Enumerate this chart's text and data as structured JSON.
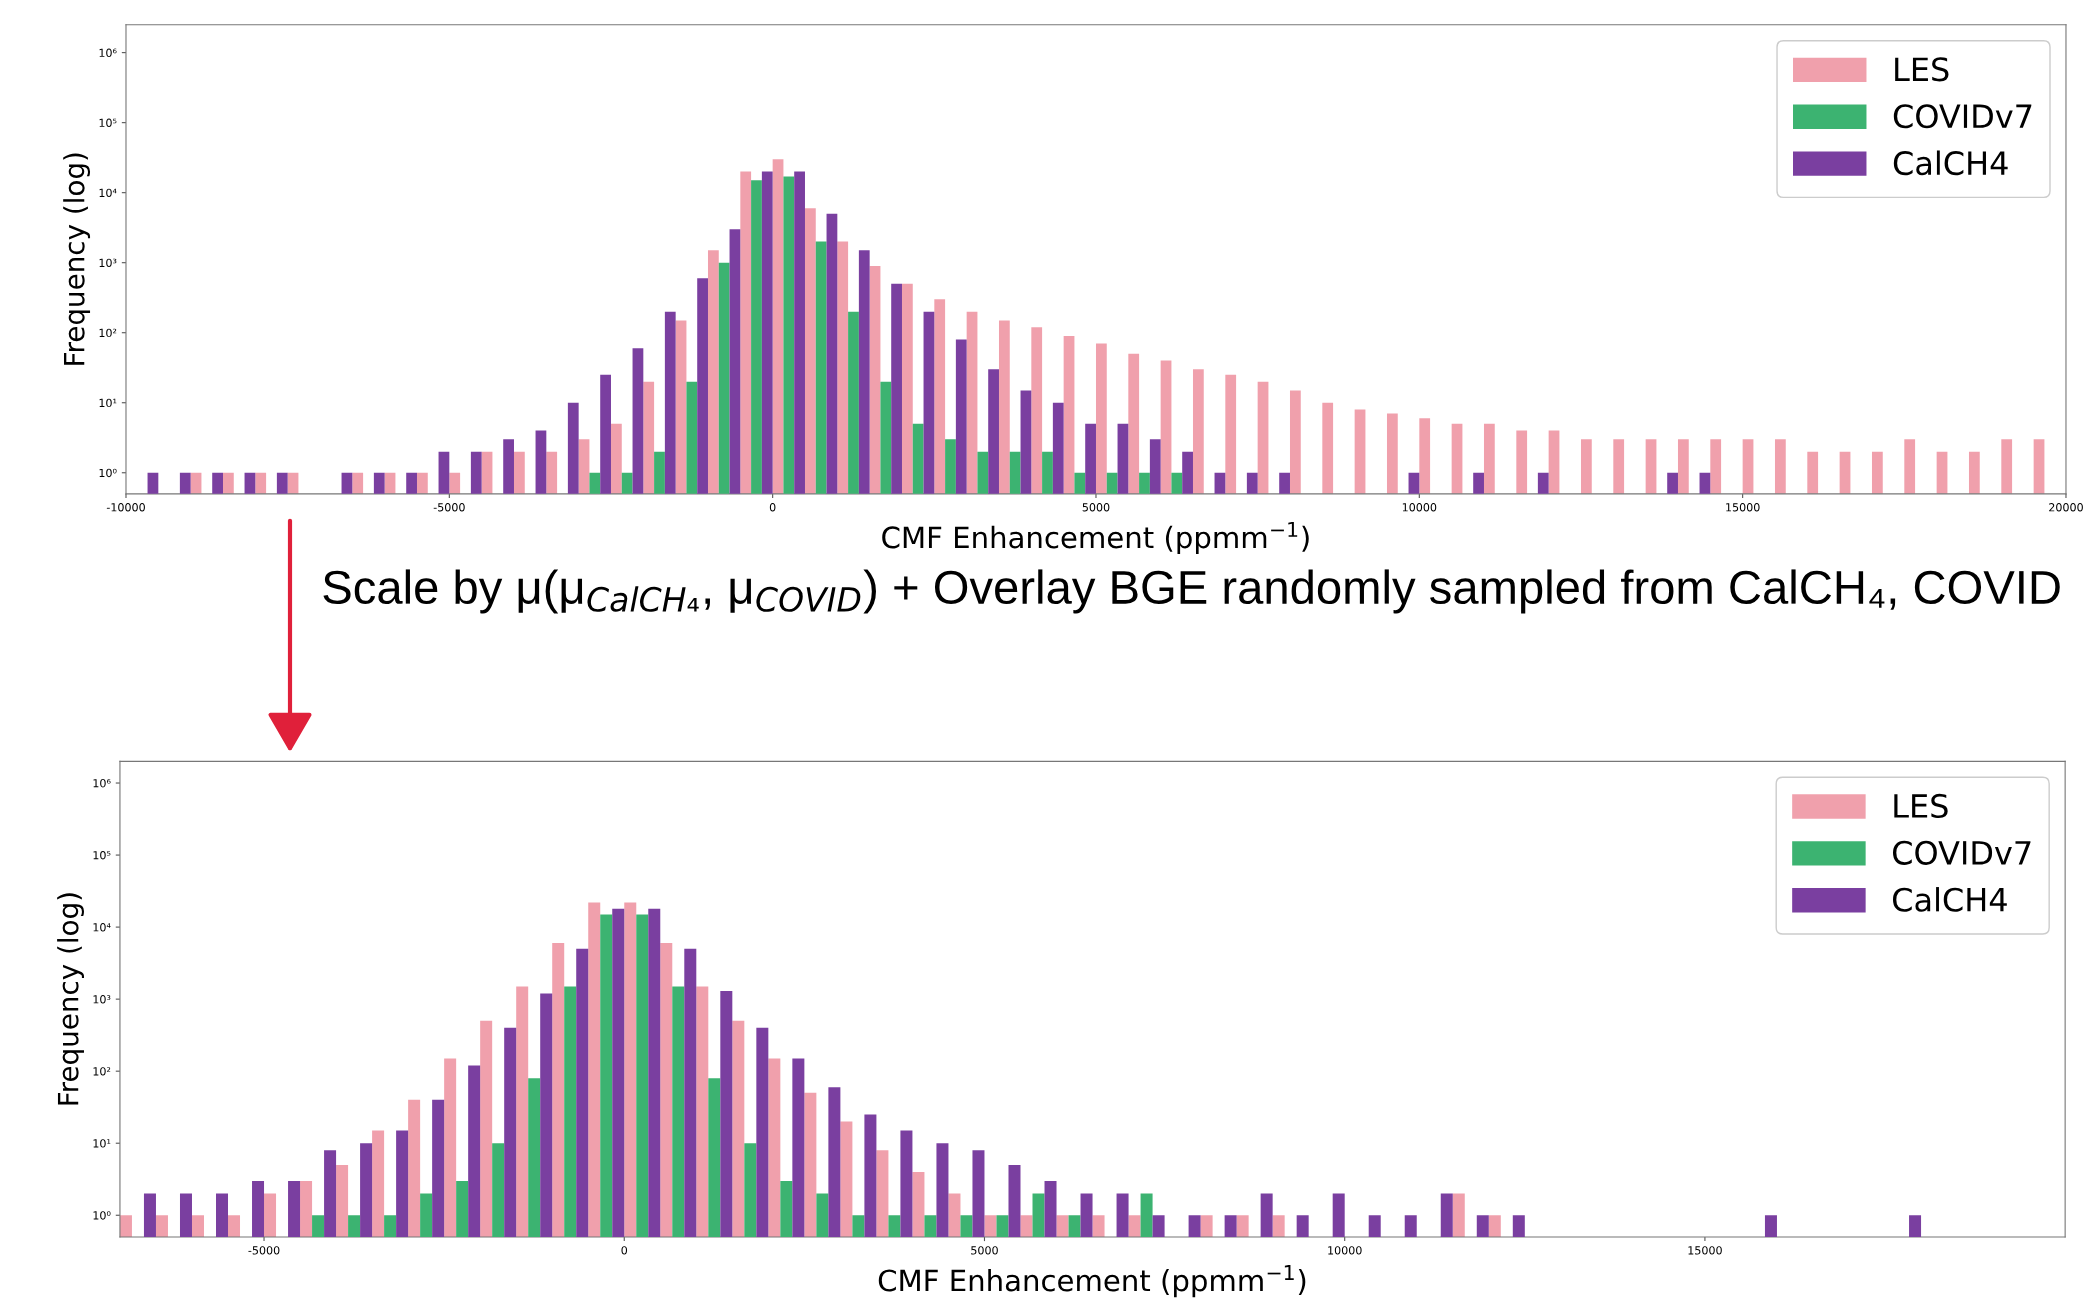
{
  "chart_data": [
    {
      "type": "histogram",
      "xlabel": "CMF Enhancement (ppmm$^{−1}$)",
      "ylabel": "Frequency (log)",
      "log": true,
      "legend": "top right",
      "grid": false,
      "bins": [
        -10000,
        -9500,
        -9000,
        -8500,
        -8000,
        -7500,
        -7000,
        -6500,
        -6000,
        -5500,
        -5000,
        -4500,
        -4000,
        -3500,
        -3000,
        -2500,
        -2000,
        -1500,
        -1000,
        -500,
        0,
        500,
        1000,
        1500,
        2000,
        2500,
        3000,
        3500,
        4000,
        4500,
        5000,
        5500,
        6000,
        6500,
        7000,
        7500,
        8000,
        8500,
        9000,
        9500,
        10000,
        10500,
        11000,
        11500,
        12000,
        12500,
        13000,
        13500,
        14000,
        14500,
        15000,
        15500,
        16000,
        16500,
        17000,
        17500,
        18000,
        18500,
        19000,
        19500,
        20000
      ],
      "xlim": [
        -10000,
        20000
      ],
      "xticks": [
        -10000,
        -5000,
        0,
        5000,
        10000,
        15000,
        20000
      ],
      "ylim": [
        0.5,
        2500000
      ],
      "yticks": [
        {
          "value": 1,
          "label": "10⁰"
        },
        {
          "value": 10,
          "label": "10¹"
        },
        {
          "value": 100,
          "label": "10²"
        },
        {
          "value": 1000,
          "label": "10³"
        },
        {
          "value": 10000,
          "label": "10⁴"
        },
        {
          "value": 100000,
          "label": "10⁵"
        },
        {
          "value": 1000000,
          "label": "10⁶"
        }
      ],
      "series": [
        {
          "name": "LES",
          "color": "#f0a0ac",
          "values": [
            null,
            null,
            1,
            1,
            1,
            1,
            null,
            1,
            1,
            1,
            1,
            2,
            2,
            2,
            3,
            5,
            20,
            150,
            1500,
            20000,
            30000,
            6000,
            2000,
            900,
            500,
            300,
            200,
            150,
            120,
            90,
            70,
            50,
            40,
            30,
            25,
            20,
            15,
            10,
            8,
            7,
            6,
            5,
            5,
            4,
            4,
            3,
            3,
            3,
            3,
            3,
            3,
            3,
            2,
            2,
            2,
            3,
            2,
            2,
            3,
            3
          ]
        },
        {
          "name": "COVIDv7",
          "color": "#3cb371",
          "values": [
            null,
            null,
            null,
            null,
            null,
            null,
            null,
            null,
            null,
            null,
            null,
            null,
            null,
            null,
            1,
            1,
            2,
            20,
            1000,
            15000,
            17000,
            2000,
            200,
            20,
            5,
            3,
            2,
            2,
            2,
            1,
            1,
            1,
            1,
            null,
            null,
            null,
            null,
            null,
            null,
            null,
            null,
            null,
            null,
            null,
            null,
            null,
            null,
            null,
            null,
            null,
            null,
            null,
            null,
            null,
            null,
            null,
            null,
            null,
            null,
            null
          ]
        },
        {
          "name": "CalCH4",
          "color": "#7a3fa0",
          "values": [
            1,
            1,
            1,
            1,
            1,
            null,
            1,
            1,
            1,
            2,
            2,
            3,
            4,
            10,
            25,
            60,
            200,
            600,
            3000,
            20000,
            20000,
            5000,
            1500,
            500,
            200,
            80,
            30,
            15,
            10,
            5,
            5,
            3,
            2,
            1,
            1,
            1,
            null,
            null,
            null,
            1,
            null,
            1,
            null,
            1,
            null,
            null,
            null,
            1,
            1,
            null,
            null,
            null,
            null,
            null,
            null,
            null,
            null,
            null,
            null,
            null
          ]
        }
      ]
    },
    {
      "type": "histogram",
      "xlabel": "CMF Enhancement (ppmm$^{−1}$)",
      "ylabel": "Frequency (log)",
      "log": true,
      "legend": "top right",
      "grid": false,
      "annotations": [
        "Scale by μ(μ$_{CalCH₄}$, μ$_{COVID}$) + Overlay BGE randomly sampled from CalCH₄, COVID"
      ],
      "bins": [
        -7000,
        -6500,
        -6000,
        -5500,
        -5000,
        -4500,
        -4000,
        -3500,
        -3000,
        -2500,
        -2000,
        -1500,
        -1000,
        -500,
        0,
        500,
        1000,
        1500,
        2000,
        2500,
        3000,
        3500,
        4000,
        4500,
        5000,
        5500,
        6000,
        6500,
        7000,
        7500,
        8000,
        8500,
        9000,
        9500,
        10000,
        10500,
        11000,
        11500,
        12000,
        12500,
        13000,
        13500,
        14000,
        14500,
        15000,
        15500,
        16000,
        16500,
        17000,
        17500,
        18000,
        18500,
        19000,
        19500,
        20000
      ],
      "xlim": [
        -7000,
        20000
      ],
      "xticks": [
        -5000,
        0,
        5000,
        10000,
        15000
      ],
      "ylim": [
        0.5,
        2000000
      ],
      "yticks": [
        {
          "value": 1,
          "label": "10⁰"
        },
        {
          "value": 10,
          "label": "10¹"
        },
        {
          "value": 100,
          "label": "10²"
        },
        {
          "value": 1000,
          "label": "10³"
        },
        {
          "value": 10000,
          "label": "10⁴"
        },
        {
          "value": 100000,
          "label": "10⁵"
        },
        {
          "value": 1000000,
          "label": "10⁶"
        }
      ],
      "series": [
        {
          "name": "LES",
          "color": "#f0a0ac",
          "values": [
            1,
            1,
            1,
            1,
            2,
            3,
            5,
            15,
            40,
            150,
            500,
            1500,
            6000,
            22000,
            22000,
            6000,
            1500,
            500,
            150,
            50,
            20,
            8,
            4,
            2,
            1,
            1,
            1,
            1,
            1,
            null,
            1,
            1,
            1,
            null,
            null,
            null,
            null,
            2,
            1,
            null,
            null,
            null,
            null,
            null,
            null,
            null,
            null,
            null,
            null,
            null,
            null,
            null,
            null,
            null
          ]
        },
        {
          "name": "COVIDv7",
          "color": "#3cb371",
          "values": [
            null,
            null,
            null,
            null,
            null,
            1,
            1,
            1,
            2,
            3,
            10,
            80,
            1500,
            15000,
            15000,
            1500,
            80,
            10,
            3,
            2,
            1,
            1,
            1,
            1,
            1,
            2,
            1,
            null,
            2,
            null,
            null,
            null,
            null,
            null,
            null,
            null,
            null,
            null,
            null,
            null,
            null,
            null,
            null,
            null,
            null,
            null,
            null,
            null,
            null,
            null,
            null,
            null,
            null,
            null
          ]
        },
        {
          "name": "CalCH4",
          "color": "#7a3fa0",
          "values": [
            2,
            2,
            2,
            3,
            3,
            8,
            10,
            15,
            40,
            120,
            400,
            1200,
            5000,
            18000,
            18000,
            5000,
            1300,
            400,
            150,
            60,
            25,
            15,
            10,
            8,
            5,
            3,
            2,
            2,
            1,
            1,
            1,
            2,
            1,
            2,
            1,
            1,
            2,
            1,
            1,
            null,
            null,
            null,
            null,
            null,
            null,
            1,
            null,
            null,
            null,
            1,
            null,
            null,
            null,
            null
          ]
        }
      ]
    }
  ]
}
